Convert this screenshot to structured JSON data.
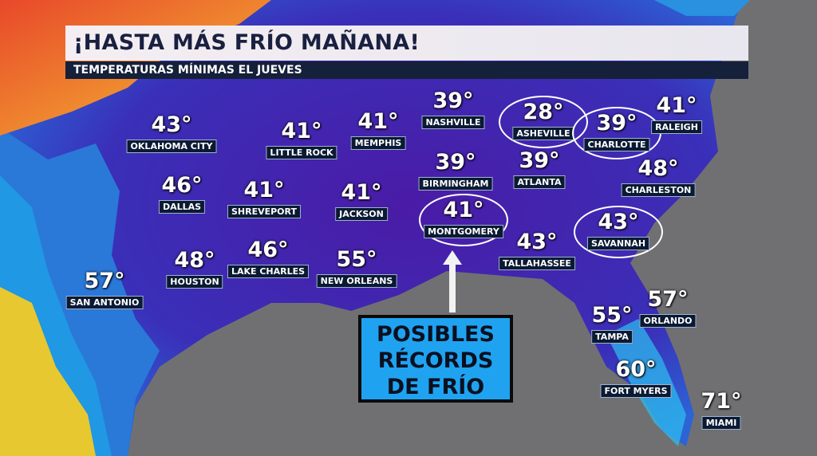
{
  "header": {
    "title": "¡HASTA MÁS FRÍO MAÑANA!",
    "subtitle": "TEMPERATURAS MÍNIMAS EL JUEVES"
  },
  "callout": {
    "lines": [
      "POSIBLES",
      "RÉCORDS",
      "DE FRÍO"
    ],
    "color": "#1fa3f0"
  },
  "colors": {
    "land_cold": "#4b1fa8",
    "land_mid": "#2f5fd8",
    "warm": "#e8482a",
    "sea": "#6e6e70"
  },
  "cities": [
    {
      "name": "OKLAHOMA CITY",
      "temp": "43°",
      "circled": false
    },
    {
      "name": "LITTLE ROCK",
      "temp": "41°",
      "circled": false
    },
    {
      "name": "MEMPHIS",
      "temp": "41°",
      "circled": false
    },
    {
      "name": "NASHVILLE",
      "temp": "39°",
      "circled": false
    },
    {
      "name": "ASHEVILLE",
      "temp": "28°",
      "circled": true
    },
    {
      "name": "CHARLOTTE",
      "temp": "39°",
      "circled": true
    },
    {
      "name": "RALEIGH",
      "temp": "41°",
      "circled": false
    },
    {
      "name": "DALLAS",
      "temp": "46°",
      "circled": false
    },
    {
      "name": "SHREVEPORT",
      "temp": "41°",
      "circled": false
    },
    {
      "name": "JACKSON",
      "temp": "41°",
      "circled": false
    },
    {
      "name": "BIRMINGHAM",
      "temp": "39°",
      "circled": false
    },
    {
      "name": "ATLANTA",
      "temp": "39°",
      "circled": false
    },
    {
      "name": "CHARLESTON",
      "temp": "48°",
      "circled": false
    },
    {
      "name": "MONTGOMERY",
      "temp": "41°",
      "circled": true
    },
    {
      "name": "SAVANNAH",
      "temp": "43°",
      "circled": true
    },
    {
      "name": "HOUSTON",
      "temp": "48°",
      "circled": false
    },
    {
      "name": "LAKE CHARLES",
      "temp": "46°",
      "circled": false
    },
    {
      "name": "NEW ORLEANS",
      "temp": "55°",
      "circled": false
    },
    {
      "name": "TALLAHASSEE",
      "temp": "43°",
      "circled": false
    },
    {
      "name": "SAN ANTONIO",
      "temp": "57°",
      "circled": false
    },
    {
      "name": "TAMPA",
      "temp": "55°",
      "circled": false
    },
    {
      "name": "ORLANDO",
      "temp": "57°",
      "circled": false
    },
    {
      "name": "FORT MYERS",
      "temp": "60°",
      "circled": false
    },
    {
      "name": "MIAMI",
      "temp": "71°",
      "circled": false
    }
  ]
}
